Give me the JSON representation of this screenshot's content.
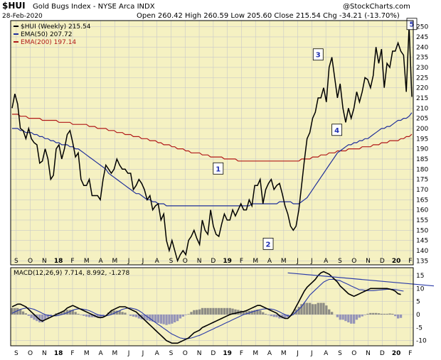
{
  "header": {
    "symbol": "$HUI",
    "name": "Gold Bugs Index - NYSE Arca INDX",
    "copyright": "@StockCharts.com",
    "date": "28-Feb-2020",
    "ohlc": "Open 260.42  High 260.59  Low 205.60  Close 215.54  Chg -34.21 (-13.70%)"
  },
  "legend": [
    {
      "label": "$HUI (Weekly) 215.54",
      "color": "#000000"
    },
    {
      "label": "EMA(50) 207.72",
      "color": "#1f2f9a"
    },
    {
      "label": "EMA(200) 197.14",
      "color": "#b01818"
    }
  ],
  "macd_label": "MACD(12,26,9) 7.714, 8.992, -1.278",
  "months": [
    "S",
    "O",
    "N",
    "18",
    "F",
    "M",
    "A",
    "M",
    "J",
    "J",
    "A",
    "S",
    "O",
    "N",
    "D",
    "19",
    "F",
    "M",
    "A",
    "M",
    "J",
    "J",
    "A",
    "S",
    "O",
    "N",
    "D",
    "20",
    "F"
  ],
  "colors": {
    "background": "#f5f1c2",
    "price": "#000000",
    "ema50": "#1f2f9a",
    "ema200": "#b01818",
    "hist": "#8585b6",
    "hist_pos": "#7a7a7a",
    "signal": "#2b3ba8",
    "trend": "#2b3ba8"
  },
  "chart_data": [
    {
      "type": "line",
      "ylim": [
        133,
        253
      ],
      "yticks": [
        135,
        140,
        145,
        150,
        155,
        160,
        165,
        170,
        175,
        180,
        185,
        190,
        195,
        200,
        205,
        210,
        215,
        220,
        225,
        230,
        235,
        240,
        245,
        250
      ],
      "annotations": [
        {
          "label": "1",
          "x": 33,
          "y": 180
        },
        {
          "label": "2",
          "x": 41,
          "y": 143
        },
        {
          "label": "3",
          "x": 49,
          "y": 236
        },
        {
          "label": "4",
          "x": 52,
          "y": 199
        },
        {
          "label": "5",
          "x": 64,
          "y": 251
        }
      ],
      "series": [
        {
          "name": "$HUI (Weekly)",
          "values": [
            210,
            217,
            212,
            200,
            199,
            195,
            200,
            195,
            193,
            192,
            183,
            184,
            190,
            185,
            175,
            177,
            190,
            192,
            185,
            190,
            197,
            199,
            193,
            186,
            188,
            175,
            172,
            172,
            175,
            167,
            167,
            167,
            165,
            175,
            182,
            180,
            178,
            180,
            185,
            182,
            180,
            180,
            178,
            178,
            170,
            172,
            175,
            173,
            170,
            165,
            167,
            160,
            162,
            163,
            155,
            158,
            145,
            140,
            145,
            140,
            135,
            138,
            140,
            138,
            145,
            147,
            150,
            146,
            143,
            155,
            150,
            148,
            160,
            152,
            148,
            147,
            153,
            158,
            155,
            155,
            160,
            157,
            160,
            163,
            160,
            160,
            165,
            162,
            172,
            172,
            175,
            163,
            170,
            173,
            175,
            170,
            172,
            173,
            168,
            162,
            158,
            152,
            150,
            152,
            160,
            172,
            184,
            195,
            198,
            205,
            208,
            215,
            215,
            220,
            213,
            230,
            235,
            225,
            215,
            222,
            210,
            203,
            210,
            205,
            210,
            218,
            213,
            218,
            225,
            224,
            220,
            226,
            240,
            232,
            239,
            220,
            232,
            230,
            238,
            238,
            242,
            238,
            236,
            218,
            250,
            215.54
          ]
        },
        {
          "name": "EMA(50)",
          "values": [
            200,
            200,
            200,
            199,
            199,
            198,
            198,
            198,
            197,
            197,
            196,
            196,
            195,
            195,
            194,
            194,
            193,
            193,
            192,
            192,
            192,
            191,
            191,
            190,
            190,
            189,
            188,
            187,
            186,
            185,
            184,
            183,
            182,
            181,
            180,
            178,
            177,
            176,
            175,
            174,
            173,
            172,
            171,
            170,
            169,
            168,
            168,
            167,
            166,
            165,
            165,
            164,
            164,
            163,
            163,
            163,
            162,
            162,
            162,
            162,
            162,
            162,
            162,
            162,
            162,
            162,
            162,
            162,
            162,
            162,
            162,
            162,
            162,
            162,
            162,
            162,
            162,
            162,
            162,
            162,
            162,
            162,
            162,
            162,
            162,
            162,
            162,
            163,
            163,
            163,
            163,
            163,
            163,
            163,
            163,
            163,
            163,
            164,
            164,
            164,
            164,
            164,
            163,
            163,
            163,
            164,
            165,
            166,
            168,
            170,
            172,
            174,
            176,
            178,
            180,
            182,
            184,
            186,
            188,
            189,
            190,
            191,
            192,
            192,
            193,
            193,
            194,
            194,
            195,
            195,
            196,
            197,
            198,
            199,
            200,
            200,
            201,
            201,
            202,
            203,
            204,
            204,
            205,
            205,
            206,
            207.72
          ]
        },
        {
          "name": "EMA(200)",
          "values": [
            207,
            207,
            207,
            206,
            206,
            206,
            205,
            205,
            205,
            205,
            205,
            204,
            204,
            204,
            204,
            204,
            204,
            203,
            203,
            203,
            203,
            203,
            202,
            202,
            202,
            202,
            202,
            202,
            201,
            201,
            201,
            200,
            200,
            200,
            200,
            199,
            199,
            199,
            198,
            198,
            198,
            197,
            197,
            197,
            196,
            196,
            196,
            195,
            195,
            195,
            194,
            194,
            194,
            193,
            193,
            192,
            192,
            192,
            191,
            191,
            190,
            190,
            190,
            189,
            189,
            188,
            188,
            188,
            188,
            187,
            187,
            187,
            186,
            186,
            186,
            186,
            186,
            185,
            185,
            185,
            185,
            185,
            184,
            184,
            184,
            184,
            184,
            184,
            184,
            184,
            184,
            184,
            184,
            184,
            184,
            184,
            184,
            184,
            184,
            184,
            184,
            184,
            184,
            184,
            184,
            185,
            185,
            185,
            185,
            186,
            186,
            186,
            187,
            187,
            187,
            188,
            188,
            188,
            189,
            189,
            189,
            189,
            190,
            190,
            190,
            190,
            190,
            191,
            191,
            191,
            191,
            192,
            192,
            192,
            193,
            193,
            193,
            194,
            194,
            194,
            194,
            195,
            195,
            196,
            196,
            197.14
          ]
        }
      ]
    },
    {
      "type": "line",
      "ylim": [
        -12,
        18
      ],
      "yticks": [
        -10,
        -5,
        0,
        5,
        10,
        15
      ],
      "trendline": {
        "x": [
          100,
          153
        ],
        "y": [
          16,
          11
        ]
      },
      "series": [
        {
          "name": "MACD",
          "values": [
            3,
            3.5,
            4,
            4,
            3.5,
            3,
            2,
            1,
            0,
            -1,
            -2,
            -2.5,
            -2,
            -1.5,
            -1,
            -0.5,
            0,
            0.5,
            1,
            1.5,
            2.5,
            3,
            3.5,
            3,
            2.5,
            2,
            1.5,
            1,
            0.5,
            0,
            -0.5,
            -1,
            -1.2,
            -1,
            -0.5,
            0.5,
            1.5,
            2,
            2.5,
            3,
            3,
            3,
            2.5,
            2,
            1.5,
            1,
            0,
            -1,
            -2,
            -3,
            -4,
            -5,
            -6,
            -7,
            -8,
            -9,
            -10,
            -10.5,
            -11,
            -11,
            -11,
            -10.5,
            -10,
            -9.5,
            -9,
            -8,
            -7,
            -6.5,
            -6,
            -5,
            -4.5,
            -4,
            -3.5,
            -3,
            -2.5,
            -2,
            -1.5,
            -1,
            -0.5,
            0,
            0.3,
            0.5,
            0.8,
            1,
            1.2,
            1.5,
            2,
            2.5,
            3,
            3.5,
            3.5,
            3,
            2.5,
            2,
            1.5,
            1,
            0.5,
            -0.5,
            -1,
            -1.5,
            -1.5,
            -0.5,
            1,
            3,
            5,
            7,
            9,
            10.5,
            11.5,
            12.5,
            13.5,
            15,
            16,
            16.5,
            16,
            15.5,
            14.5,
            13.5,
            12.5,
            11,
            10,
            9,
            8,
            7.5,
            7,
            7.5,
            8,
            8.5,
            9,
            9.5,
            10,
            10,
            10,
            10,
            10,
            10,
            10,
            9.8,
            9.5,
            9,
            8,
            7.714
          ]
        },
        {
          "name": "Signal",
          "values": [
            0.5,
            1,
            1.5,
            2,
            2.3,
            2.5,
            2.5,
            2.3,
            2,
            1.5,
            1,
            0.5,
            0,
            -0.3,
            -0.5,
            -0.5,
            -0.5,
            -0.3,
            0,
            0.3,
            0.7,
            1.2,
            1.7,
            2,
            2.2,
            2.2,
            2,
            1.8,
            1.5,
            1,
            0.5,
            0,
            -0.3,
            -0.5,
            -0.5,
            -0.3,
            0,
            0.5,
            1,
            1.5,
            2,
            2.3,
            2.5,
            2.5,
            2.3,
            2,
            1.5,
            0.8,
            0,
            -0.8,
            -1.5,
            -2.3,
            -3,
            -3.8,
            -4.5,
            -5.3,
            -6,
            -6.8,
            -7.5,
            -8,
            -8.5,
            -9,
            -9.2,
            -9.3,
            -9.2,
            -9,
            -8.7,
            -8.3,
            -8,
            -7.5,
            -7,
            -6.5,
            -6,
            -5.5,
            -5,
            -4.5,
            -4,
            -3.5,
            -3,
            -2.5,
            -2,
            -1.5,
            -1,
            -0.5,
            0,
            0.3,
            0.6,
            1,
            1.3,
            1.6,
            1.9,
            2.1,
            2.2,
            2.2,
            2.1,
            1.9,
            1.5,
            1,
            0.5,
            0,
            -0.5,
            -0.5,
            0,
            1,
            2,
            3,
            4.5,
            6,
            7.5,
            8.5,
            9.5,
            10.5,
            11.5,
            12.5,
            13,
            13.5,
            13.5,
            13.5,
            13.2,
            13,
            12.5,
            12,
            11.5,
            11,
            10.5,
            10,
            9.5,
            9.5,
            9.3,
            9.2,
            9.2,
            9.2,
            9.3,
            9.4,
            9.5,
            9.6,
            9.7,
            9.7,
            9.7,
            9.6,
            9.4,
            9.2,
            8.992
          ]
        },
        {
          "name": "Histogram",
          "values": [
            2.5,
            2.5,
            2.5,
            2,
            1.2,
            0.5,
            -0.5,
            -1.3,
            -2,
            -2.5,
            -3,
            -3,
            -2,
            -1.2,
            -0.5,
            0,
            0.5,
            0.8,
            1,
            1.2,
            1.8,
            1.8,
            1.8,
            1,
            0.3,
            -0.2,
            -0.5,
            -0.8,
            -1,
            -1,
            -1,
            -1,
            -0.9,
            -0.5,
            0,
            0.8,
            1.5,
            1.5,
            1.5,
            1.5,
            1,
            0.7,
            0,
            -0.5,
            -0.8,
            -1,
            -1.5,
            -1.8,
            -2,
            -2.2,
            -2.5,
            -2.7,
            -3,
            -3.2,
            -3.5,
            -3.7,
            -4,
            -3.7,
            -3.5,
            -3,
            -2.5,
            -1.5,
            -0.8,
            -0.2,
            0.2,
            1,
            1.7,
            1.8,
            2,
            2.5,
            2.5,
            2.5,
            2.5,
            2.5,
            2.5,
            2.5,
            2.5,
            2.5,
            2.5,
            2.5,
            2.3,
            2,
            1.8,
            1.5,
            1.2,
            1.2,
            1.4,
            1.5,
            1.7,
            1.9,
            1.6,
            0.9,
            0.3,
            -0.2,
            -0.6,
            -0.9,
            -1,
            -1.5,
            -1.5,
            -1.5,
            -1,
            0,
            1,
            2,
            3,
            4,
            4.5,
            4.5,
            4.5,
            4,
            4,
            4.5,
            4.5,
            4.5,
            3.5,
            2,
            1,
            0,
            -1,
            -2,
            -2,
            -2.5,
            -3,
            -3.5,
            -3.5,
            -2,
            -1.2,
            -0.7,
            -0.2,
            0.3,
            0.6,
            0.6,
            0.6,
            0.5,
            0.3,
            0.3,
            0.3,
            0.4,
            0.3,
            -0.6,
            -1.5,
            -1.278
          ]
        }
      ]
    }
  ]
}
